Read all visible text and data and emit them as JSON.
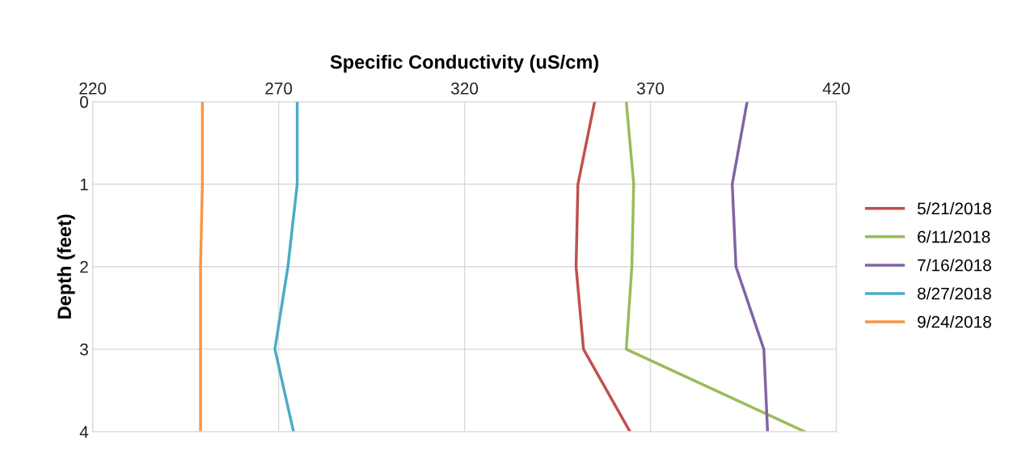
{
  "chart_data": {
    "type": "line",
    "xlabel": "Specific Conductivity (uS/cm)",
    "ylabel": "Depth (feet)",
    "xlim": [
      220,
      420
    ],
    "xticks": [
      220,
      270,
      320,
      370,
      420
    ],
    "ylim": [
      4,
      0
    ],
    "yticks": [
      0,
      1,
      2,
      3,
      4
    ],
    "grid": true,
    "legend": "right",
    "marker": "none",
    "line_style": "solid",
    "series": [
      {
        "name": "5/21/2018",
        "color": "#c0504d",
        "x": [
          355,
          350.5,
          350,
          352,
          364.5
        ],
        "values": [
          0,
          1,
          2,
          3,
          4
        ]
      },
      {
        "name": "6/11/2018",
        "color": "#9bbb59",
        "x": [
          363.5,
          365.5,
          365,
          363.5,
          411.5
        ],
        "values": [
          0,
          1,
          2,
          3,
          4
        ]
      },
      {
        "name": "7/16/2018",
        "color": "#8064a2",
        "x": [
          396,
          392,
          393,
          400.5,
          401.5
        ],
        "values": [
          0,
          1,
          2,
          3,
          4
        ]
      },
      {
        "name": "8/27/2018",
        "color": "#4bacc6",
        "x": [
          275,
          275,
          272.5,
          269,
          274
        ],
        "values": [
          0,
          1,
          2,
          3,
          4
        ]
      },
      {
        "name": "9/24/2018",
        "color": "#f79646",
        "x": [
          249.5,
          249.5,
          249,
          249,
          249
        ],
        "values": [
          0,
          1,
          2,
          3,
          4
        ]
      }
    ]
  }
}
